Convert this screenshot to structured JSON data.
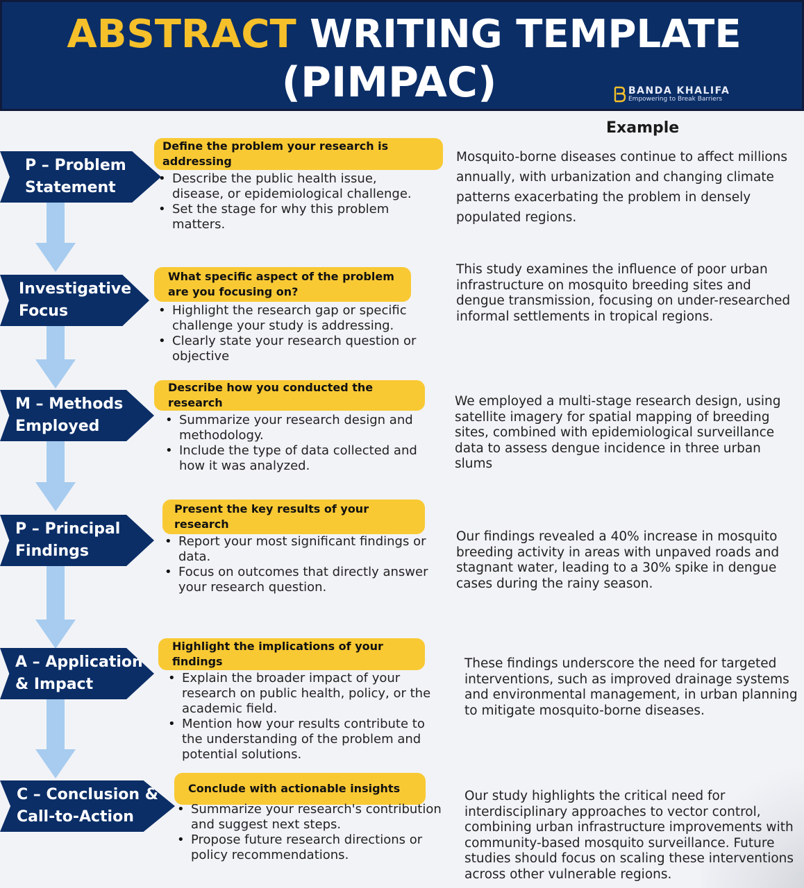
{
  "header": {
    "title_highlight": "ABSTRACT",
    "title_rest": "WRITING TEMPLATE",
    "title_line2": "(PIMPAC)",
    "brand_name": "BANDA KHALIFA",
    "brand_tagline": "Empowering to Break Barriers",
    "brand_logo_icon": "b-monogram-icon"
  },
  "colors": {
    "navy": "#0b2e67",
    "yellow_accent": "#f5c02a",
    "pill_yellow": "#f9c934",
    "arrow_blue": "#a7ccef"
  },
  "example_heading": "Example",
  "steps": [
    {
      "label_line1": "P – Problem",
      "label_line2": "Statement",
      "prompt": "Define the problem your research is addressing",
      "bullets": [
        "Describe the public health issue, disease, or epidemiological challenge.",
        "Set the stage for why this problem matters."
      ],
      "example": "Mosquito-borne diseases continue to affect millions annually, with urbanization and changing climate patterns exacerbating the problem in densely populated regions."
    },
    {
      "label_line1": "Investigative",
      "label_line2": "Focus",
      "prompt": "What specific aspect of the problem are you focusing on?",
      "bullets": [
        "Highlight the research gap or specific challenge your study is addressing.",
        "Clearly state your research question or objective"
      ],
      "example": "This study examines the influence of poor urban infrastructure on mosquito breeding sites and dengue transmission, focusing on under-researched informal settlements in tropical regions."
    },
    {
      "label_line1": "M – Methods",
      "label_line2": "Employed",
      "prompt": "Describe how you conducted the research",
      "bullets": [
        "Summarize your research design and methodology.",
        "Include the type of data collected and how it was analyzed."
      ],
      "example": "We employed a multi-stage research design, using satellite imagery for spatial mapping of breeding sites, combined with epidemiological surveillance data to assess dengue incidence in three urban slums"
    },
    {
      "label_line1": "P – Principal",
      "label_line2": "Findings",
      "prompt": "Present the key results of your research",
      "bullets": [
        "Report your most significant findings or data.",
        "Focus on outcomes that directly answer your research question."
      ],
      "example": "Our findings revealed a 40% increase in mosquito breeding activity in areas with unpaved roads and stagnant water, leading to a 30% spike in dengue cases during the rainy season."
    },
    {
      "label_line1": "A – Application",
      "label_line2": "& Impact",
      "prompt": "Highlight the implications of your findings",
      "bullets": [
        "Explain the broader impact of your research on public health, policy, or the academic field.",
        "Mention how your results contribute to the understanding of the problem and potential solutions."
      ],
      "example": "These findings underscore the need for targeted interventions, such as improved drainage systems and environmental management, in urban planning to mitigate mosquito-borne diseases."
    },
    {
      "label_line1": "C – Conclusion &",
      "label_line2": "Call-to-Action",
      "prompt": "Conclude with actionable insights",
      "bullets": [
        "Summarize your research's contribution and suggest next steps.",
        "Propose future research directions or policy recommendations."
      ],
      "example": "Our study highlights the critical need for interdisciplinary approaches to vector control, combining urban infrastructure improvements with community-based mosquito surveillance. Future studies should focus on scaling these interventions across other vulnerable regions."
    }
  ]
}
